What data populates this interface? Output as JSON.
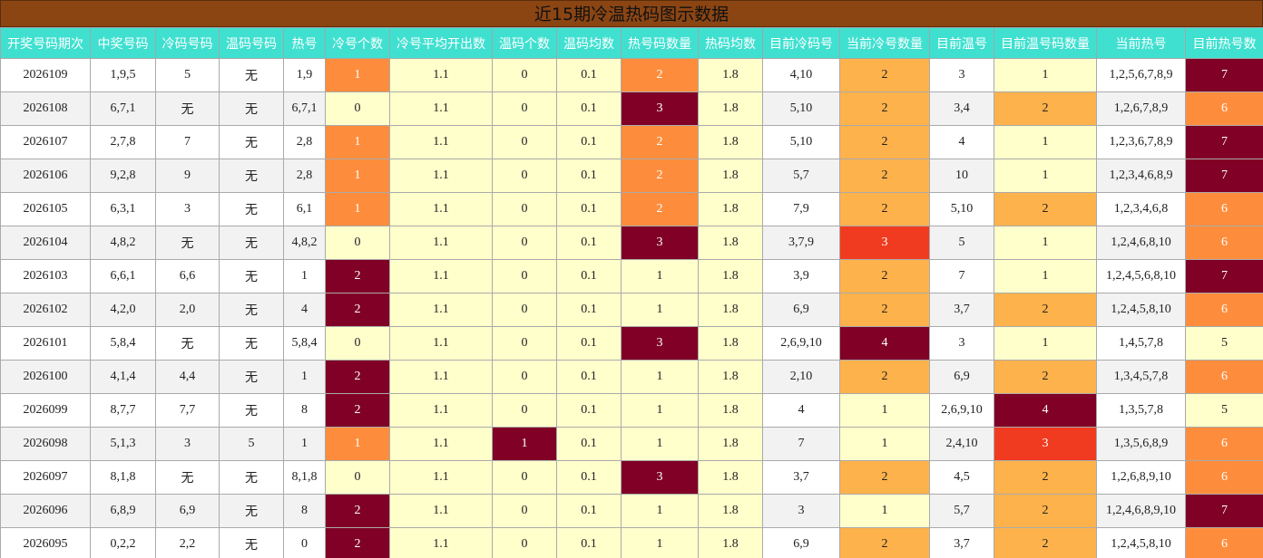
{
  "title": "近15期冷温热码图示数据",
  "table": {
    "headers": [
      "开奖号码期次",
      "中奖号码",
      "冷码号码",
      "温码号码",
      "热号",
      "冷号个数",
      "冷号平均开出数",
      "温码个数",
      "温码均数",
      "热号码数量",
      "热码均数",
      "目前冷码号",
      "当前冷号数量",
      "目前温号",
      "目前温号码数量",
      "当前热号",
      "目前热号数"
    ],
    "rows": [
      [
        "2026109",
        "1,9,5",
        "5",
        "无",
        "1,9",
        "1",
        "1.1",
        "0",
        "0.1",
        "2",
        "1.8",
        "4,10",
        "2",
        "3",
        "1",
        "1,2,5,6,7,8,9",
        "7"
      ],
      [
        "2026108",
        "6,7,1",
        "无",
        "无",
        "6,7,1",
        "0",
        "1.1",
        "0",
        "0.1",
        "3",
        "1.8",
        "5,10",
        "2",
        "3,4",
        "2",
        "1,2,6,7,8,9",
        "6"
      ],
      [
        "2026107",
        "2,7,8",
        "7",
        "无",
        "2,8",
        "1",
        "1.1",
        "0",
        "0.1",
        "2",
        "1.8",
        "5,10",
        "2",
        "4",
        "1",
        "1,2,3,6,7,8,9",
        "7"
      ],
      [
        "2026106",
        "9,2,8",
        "9",
        "无",
        "2,8",
        "1",
        "1.1",
        "0",
        "0.1",
        "2",
        "1.8",
        "5,7",
        "2",
        "10",
        "1",
        "1,2,3,4,6,8,9",
        "7"
      ],
      [
        "2026105",
        "6,3,1",
        "3",
        "无",
        "6,1",
        "1",
        "1.1",
        "0",
        "0.1",
        "2",
        "1.8",
        "7,9",
        "2",
        "5,10",
        "2",
        "1,2,3,4,6,8",
        "6"
      ],
      [
        "2026104",
        "4,8,2",
        "无",
        "无",
        "4,8,2",
        "0",
        "1.1",
        "0",
        "0.1",
        "3",
        "1.8",
        "3,7,9",
        "3",
        "5",
        "1",
        "1,2,4,6,8,10",
        "6"
      ],
      [
        "2026103",
        "6,6,1",
        "6,6",
        "无",
        "1",
        "2",
        "1.1",
        "0",
        "0.1",
        "1",
        "1.8",
        "3,9",
        "2",
        "7",
        "1",
        "1,2,4,5,6,8,10",
        "7"
      ],
      [
        "2026102",
        "4,2,0",
        "2,0",
        "无",
        "4",
        "2",
        "1.1",
        "0",
        "0.1",
        "1",
        "1.8",
        "6,9",
        "2",
        "3,7",
        "2",
        "1,2,4,5,8,10",
        "6"
      ],
      [
        "2026101",
        "5,8,4",
        "无",
        "无",
        "5,8,4",
        "0",
        "1.1",
        "0",
        "0.1",
        "3",
        "1.8",
        "2,6,9,10",
        "4",
        "3",
        "1",
        "1,4,5,7,8",
        "5"
      ],
      [
        "2026100",
        "4,1,4",
        "4,4",
        "无",
        "1",
        "2",
        "1.1",
        "0",
        "0.1",
        "1",
        "1.8",
        "2,10",
        "2",
        "6,9",
        "2",
        "1,3,4,5,7,8",
        "6"
      ],
      [
        "2026099",
        "8,7,7",
        "7,7",
        "无",
        "8",
        "2",
        "1.1",
        "0",
        "0.1",
        "1",
        "1.8",
        "4",
        "1",
        "2,6,9,10",
        "4",
        "1,3,5,7,8",
        "5"
      ],
      [
        "2026098",
        "5,1,3",
        "3",
        "5",
        "1",
        "1",
        "1.1",
        "1",
        "0.1",
        "1",
        "1.8",
        "7",
        "1",
        "2,4,10",
        "3",
        "1,3,5,6,8,9",
        "6"
      ],
      [
        "2026097",
        "8,1,8",
        "无",
        "无",
        "8,1,8",
        "0",
        "1.1",
        "0",
        "0.1",
        "3",
        "1.8",
        "3,7",
        "2",
        "4,5",
        "2",
        "1,2,6,8,9,10",
        "6"
      ],
      [
        "2026096",
        "6,8,9",
        "6,9",
        "无",
        "8",
        "2",
        "1.1",
        "0",
        "0.1",
        "1",
        "1.8",
        "3",
        "1",
        "5,7",
        "2",
        "1,2,4,6,8,9,10",
        "7"
      ],
      [
        "2026095",
        "0,2,2",
        "2,2",
        "无",
        "0",
        "2",
        "1.1",
        "0",
        "0.1",
        "1",
        "1.8",
        "6,9",
        "2",
        "3,7",
        "2",
        "1,2,4,5,8,10",
        "6"
      ]
    ]
  }
}
